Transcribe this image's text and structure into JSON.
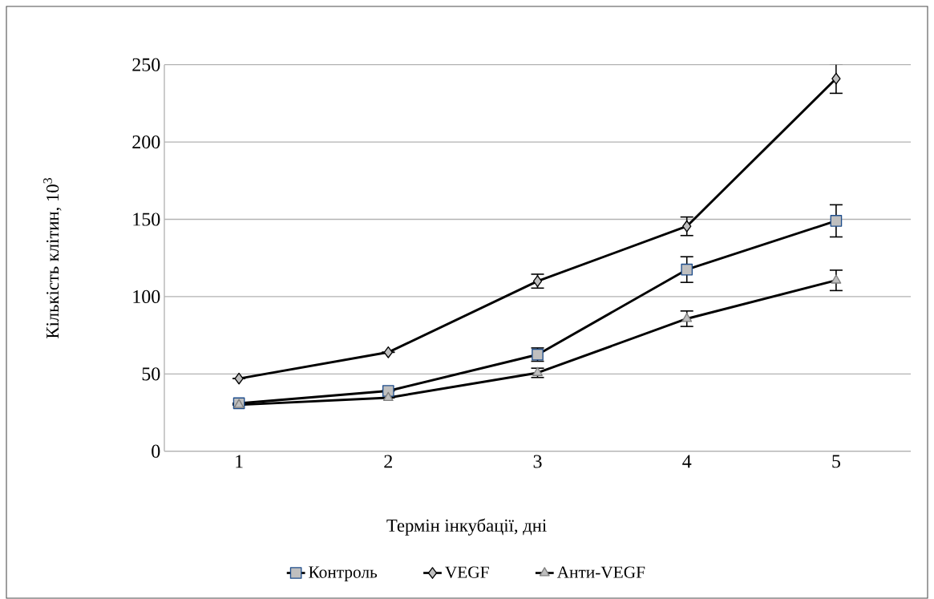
{
  "chart_data": {
    "type": "line",
    "xlabel": "Термін інкубації, дні",
    "ylabel": "Кількість клітин, 10$^{3}$",
    "categories": [
      "1",
      "2",
      "3",
      "4",
      "5"
    ],
    "series": [
      {
        "name": "Контроль",
        "color": "#000000",
        "marker": "square",
        "values": [
          31,
          39,
          62.5,
          117.5,
          149
        ],
        "errors": [
          null,
          null,
          4.3,
          8.3,
          10.4
        ]
      },
      {
        "name": "VEGF",
        "color": "#000000",
        "marker": "diamond",
        "values": [
          47,
          64,
          110,
          145.5,
          241
        ],
        "errors": [
          null,
          null,
          4.5,
          6,
          9.5
        ]
      },
      {
        "name": "Анти-VEGF",
        "color": "#000000",
        "marker": "triangle",
        "values": [
          30,
          34.6,
          50.7,
          85.7,
          110.5
        ],
        "errors": [
          null,
          null,
          3,
          5,
          6.6
        ]
      }
    ],
    "ylim": [
      0,
      250
    ],
    "yticks": [
      0,
      50,
      100,
      150,
      200,
      250
    ],
    "grid": "y",
    "legend": "bottom",
    "line_style": "solid"
  }
}
